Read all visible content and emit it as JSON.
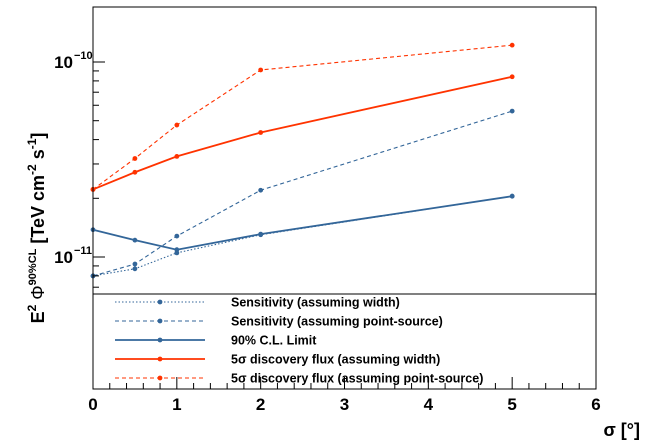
{
  "colors": {
    "blue": "#336699",
    "red": "#ff3300",
    "frame": "#000000"
  },
  "chart_data": {
    "type": "line",
    "xlabel": "σ [°]",
    "ylabel": {
      "prefix": "E",
      "prefix_sup": "2",
      "phi": "Φ",
      "phi_sup": "90%CL",
      "units": "[TeV cm",
      "cm_sup": "-2",
      "s": " s",
      "s_sup": "-1",
      "close": "]"
    },
    "xlim": [
      0,
      6
    ],
    "ylim": [
      6.5e-12,
      2e-10
    ],
    "yscale": "log",
    "x_ticks": [
      "0",
      "1",
      "2",
      "3",
      "4",
      "5",
      "6"
    ],
    "y_ticks": [
      {
        "value": 1e-11,
        "base": "10",
        "exp": "−11"
      },
      {
        "value": 1e-10,
        "base": "10",
        "exp": "−10"
      }
    ],
    "legend_position": "bottom inside",
    "series": [
      {
        "name": "Sensitivity (assuming width)",
        "color": "blue",
        "dash": "dotted",
        "x": [
          0,
          0.5,
          1,
          2,
          5
        ],
        "y": [
          8e-12,
          8.7e-12,
          1.05e-11,
          1.3e-11,
          2.05e-11
        ]
      },
      {
        "name": "Sensitivity (assuming point-source)",
        "color": "blue",
        "dash": "dashed",
        "x": [
          0,
          0.5,
          1,
          2,
          5
        ],
        "y": [
          8e-12,
          9.2e-12,
          1.28e-11,
          2.2e-11,
          5.6e-11
        ]
      },
      {
        "name": "90% C.L. Limit",
        "color": "blue",
        "dash": "solid",
        "x": [
          0,
          0.5,
          1,
          2,
          5
        ],
        "y": [
          1.38e-11,
          1.22e-11,
          1.09e-11,
          1.31e-11,
          2.05e-11
        ]
      },
      {
        "name": "5σ discovery flux (assuming width)",
        "color": "red",
        "dash": "solid",
        "x": [
          0,
          0.5,
          1,
          2,
          5
        ],
        "y": [
          2.22e-11,
          2.72e-11,
          3.28e-11,
          4.35e-11,
          8.4e-11
        ]
      },
      {
        "name": "5σ discovery flux (assuming point-source)",
        "color": "red",
        "dash": "dashed",
        "x": [
          0,
          0.5,
          1,
          2,
          5
        ],
        "y": [
          2.22e-11,
          3.2e-11,
          4.75e-11,
          9.1e-11,
          1.22e-10
        ]
      }
    ]
  }
}
